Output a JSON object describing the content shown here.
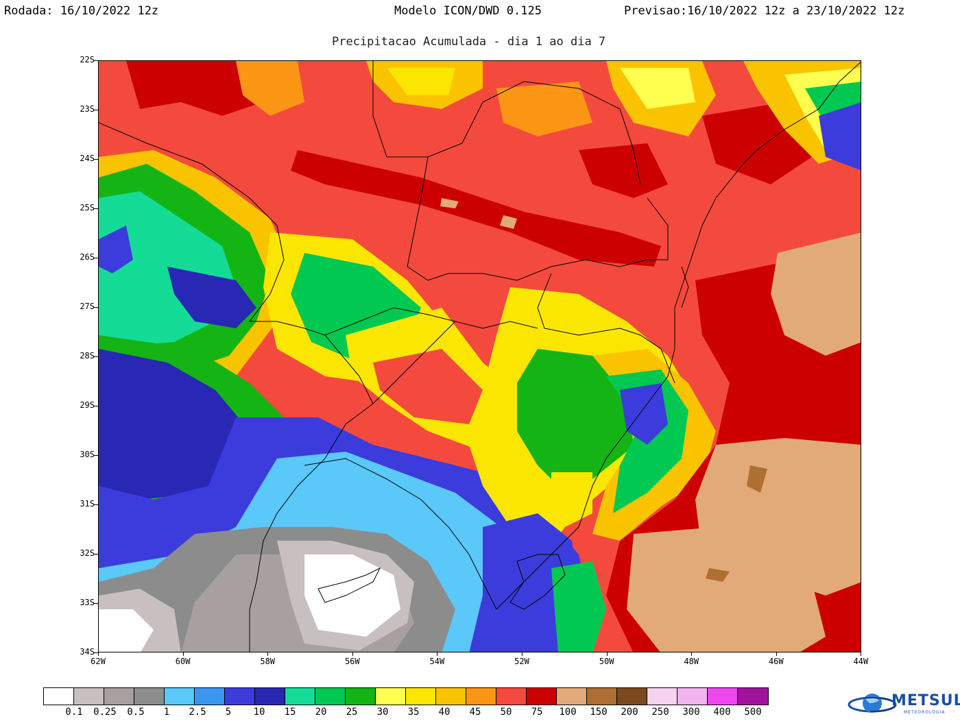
{
  "header": {
    "left": "Rodada: 16/10/2022 12z",
    "center": "Modelo ICON/DWD 0.125",
    "right": "Previsao:16/10/2022 12z a 23/10/2022 12z",
    "subtitle": "Precipitacao Acumulada - dia 1 ao dia 7"
  },
  "axes": {
    "lat_ticks": [
      "22S",
      "23S",
      "24S",
      "25S",
      "26S",
      "27S",
      "28S",
      "29S",
      "30S",
      "31S",
      "32S",
      "33S",
      "34S"
    ],
    "lon_ticks": [
      "62W",
      "60W",
      "58W",
      "56W",
      "54W",
      "52W",
      "50W",
      "48W",
      "46W",
      "44W"
    ]
  },
  "legend": {
    "colors": [
      "#ffffff",
      "#c8c0c0",
      "#a8a0a0",
      "#8c8c8c",
      "#5ac8f8",
      "#3c96f0",
      "#3c3cdc",
      "#2828b4",
      "#14dc96",
      "#00c850",
      "#14b414",
      "#ffff50",
      "#fae600",
      "#fac300",
      "#fa9614",
      "#f44a3e",
      "#cd0000",
      "#e1aa78",
      "#af6e32",
      "#7a4a1e",
      "#f4d2f0",
      "#f0b4f0",
      "#ee46ee",
      "#a0149b"
    ],
    "labels": [
      "0.1",
      "0.25",
      "0.5",
      "1",
      "2.5",
      "5",
      "10",
      "15",
      "20",
      "25",
      "30",
      "35",
      "40",
      "45",
      "50",
      "75",
      "100",
      "150",
      "200",
      "250",
      "300",
      "400",
      "500"
    ]
  },
  "logo": {
    "name": "METSUL",
    "sub": "METEOROLOGIA",
    "icon": "globe-icon"
  }
}
